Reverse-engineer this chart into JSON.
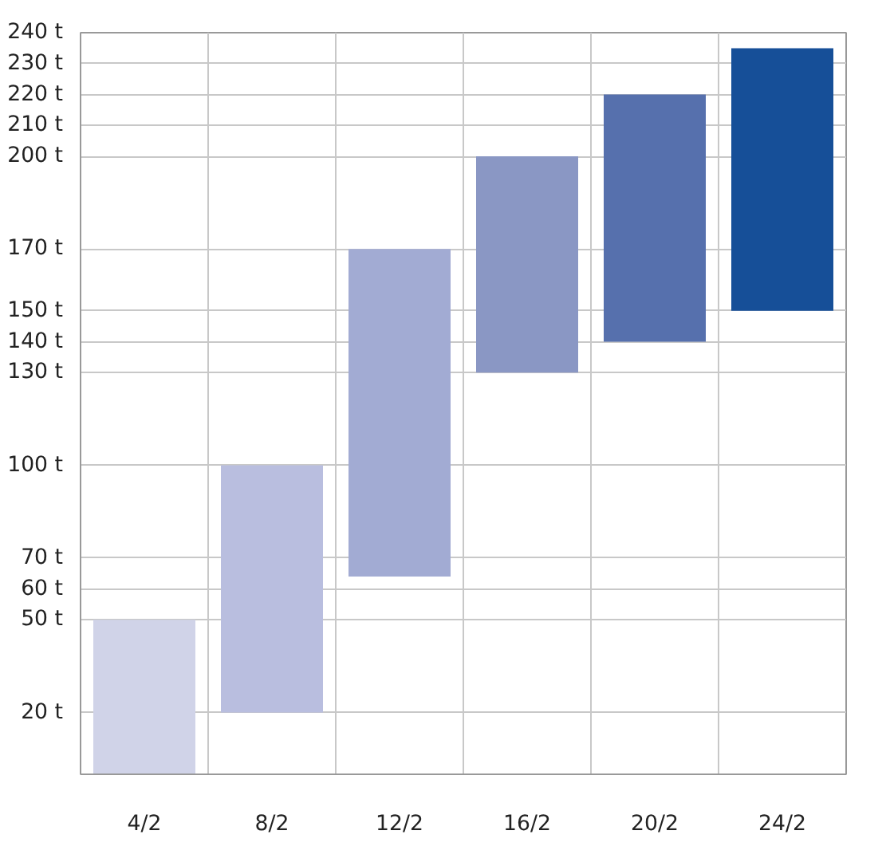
{
  "chart_data": {
    "type": "bar",
    "categories": [
      "4/2",
      "8/2",
      "12/2",
      "16/2",
      "20/2",
      "24/2"
    ],
    "base": [
      0,
      20,
      64,
      130,
      140,
      150
    ],
    "values": [
      50,
      80,
      106,
      70,
      80,
      85
    ],
    "colors": [
      "#d0d3e8",
      "#b9bedf",
      "#a2abd3",
      "#8a97c4",
      "#5670ad",
      "#164f98"
    ],
    "ylim": [
      0,
      240
    ],
    "yticks": [
      {
        "value": 20,
        "label": "20 t"
      },
      {
        "value": 50,
        "label": "50 t"
      },
      {
        "value": 60,
        "label": "60 t"
      },
      {
        "value": 70,
        "label": "70 t"
      },
      {
        "value": 100,
        "label": "100 t"
      },
      {
        "value": 130,
        "label": "130 t"
      },
      {
        "value": 140,
        "label": "140 t"
      },
      {
        "value": 150,
        "label": "150 t"
      },
      {
        "value": 170,
        "label": "170 t"
      },
      {
        "value": 200,
        "label": "200 t"
      },
      {
        "value": 210,
        "label": "210 t"
      },
      {
        "value": 220,
        "label": "220 t"
      },
      {
        "value": 230,
        "label": "230 t"
      },
      {
        "value": 240,
        "label": "240 t"
      }
    ],
    "grid": true
  }
}
